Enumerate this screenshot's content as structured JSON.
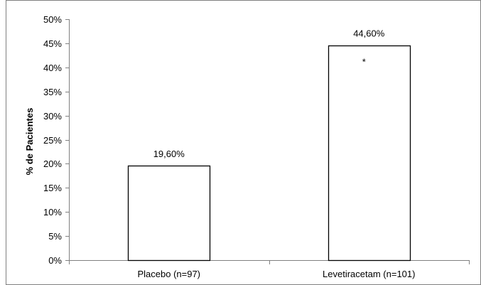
{
  "chart_data": {
    "type": "bar",
    "title": "",
    "xlabel": "",
    "ylabel": "% de Pacientes",
    "categories": [
      "Placebo (n=97)",
      "Levetiracetam (n=101)"
    ],
    "values": [
      19.6,
      44.6
    ],
    "data_labels": [
      "19,60%",
      "44,60%"
    ],
    "annotations": [
      "",
      "*"
    ],
    "ylim": [
      0,
      50
    ],
    "yticks": [
      0,
      5,
      10,
      15,
      20,
      25,
      30,
      35,
      40,
      45,
      50
    ],
    "ytick_labels": [
      "0%",
      "5%",
      "10%",
      "15%",
      "20%",
      "25%",
      "30%",
      "35%",
      "40%",
      "45%",
      "50%"
    ],
    "grid": false,
    "legend": "none",
    "colors": {
      "bar_fill": "#ffffff",
      "bar_stroke": "#000000",
      "axis": "#808080",
      "border": "#808080"
    }
  }
}
